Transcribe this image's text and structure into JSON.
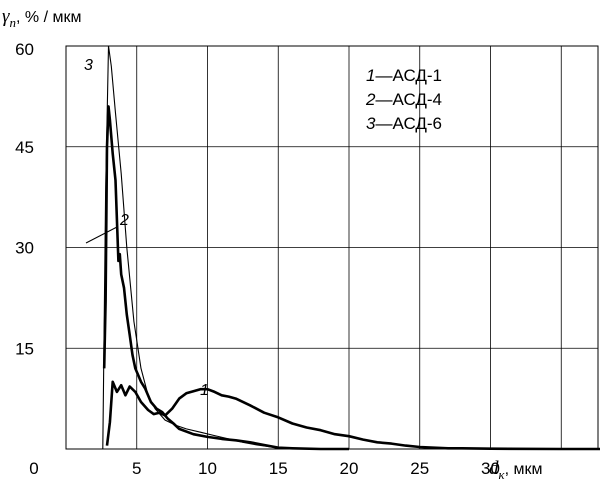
{
  "chart_data": {
    "type": "line",
    "ylabel": {
      "symbol": "γ",
      "subscript": "n",
      "unit": ", % / мкм"
    },
    "xlabel": {
      "symbol": "d",
      "subscript": "к",
      "unit": ", мкм"
    },
    "xlim": [
      0,
      40
    ],
    "ylim": [
      0,
      60
    ],
    "xticks": [
      "0",
      "5",
      "10",
      "15",
      "20",
      "25",
      "30"
    ],
    "yticks": [
      "15",
      "30",
      "45",
      "60"
    ],
    "grid": true,
    "legend": {
      "placement": "top-right",
      "entries": [
        {
          "num": "1",
          "dash": "—",
          "text": "АСД-1"
        },
        {
          "num": "2",
          "dash": "—",
          "text": "АСД-4"
        },
        {
          "num": "3",
          "dash": "—",
          "text": "АСД-6"
        }
      ]
    },
    "series": [
      {
        "name": "АСД-1",
        "label": "1",
        "stroke": "thick",
        "x": [
          2.9,
          3.1,
          3.3,
          3.6,
          3.9,
          4.2,
          4.5,
          4.9,
          5.3,
          5.8,
          6.2,
          6.6,
          7.0,
          7.5,
          8.0,
          8.5,
          9.0,
          9.5,
          10.0,
          10.5,
          11.0,
          11.5,
          12.0,
          13.0,
          14.0,
          15.0,
          16.0,
          17.0,
          18.0,
          19.0,
          20.0,
          21.0,
          22.0,
          23.0,
          24.0,
          25.0,
          26.0,
          27.0,
          28.0,
          30.0,
          35.0,
          40.0
        ],
        "y": [
          0.5,
          4.0,
          10.0,
          8.5,
          9.5,
          8.0,
          9.3,
          8.5,
          7.0,
          5.8,
          5.2,
          5.4,
          5.0,
          6.0,
          7.5,
          8.3,
          8.6,
          8.9,
          8.9,
          8.5,
          8.0,
          7.8,
          7.5,
          6.5,
          5.4,
          4.7,
          3.8,
          3.2,
          2.8,
          2.2,
          1.9,
          1.4,
          1.0,
          0.8,
          0.5,
          0.3,
          0.2,
          0.1,
          0.1,
          0.05,
          0.0,
          0.0
        ]
      },
      {
        "name": "АСД-4",
        "label": "2",
        "stroke": "thick",
        "x": [
          2.7,
          2.8,
          2.9,
          3.0,
          3.1,
          3.3,
          3.5,
          3.7,
          3.8,
          3.9,
          4.1,
          4.3,
          4.5,
          4.7,
          4.9,
          5.1,
          5.3,
          5.6,
          6.0,
          6.4,
          6.8,
          7.2,
          7.6,
          8.0,
          9.0,
          10.0,
          11.0,
          12.0,
          13.0,
          14.0,
          15.0,
          16.0,
          18.0,
          20.0
        ],
        "y": [
          12.0,
          22.0,
          45.0,
          51.0,
          49.0,
          44.0,
          40.0,
          28.0,
          29.0,
          26.0,
          24.0,
          20.0,
          17.0,
          14.0,
          12.0,
          11.0,
          10.0,
          9.0,
          7.0,
          6.0,
          5.5,
          4.5,
          3.8,
          3.0,
          2.2,
          1.8,
          1.5,
          1.3,
          1.0,
          0.6,
          0.2,
          0.1,
          0.0,
          0.0
        ]
      },
      {
        "name": "АСД-6",
        "label": "3",
        "stroke": "thin",
        "x": [
          2.6,
          2.8,
          3.0,
          3.2,
          3.5,
          3.9,
          4.3,
          4.8,
          5.3,
          5.8,
          6.3,
          7.0,
          7.8,
          8.5,
          9.5,
          10.5,
          11.5,
          12.5,
          13.5,
          14.5,
          16.0,
          18.0
        ],
        "y": [
          0.0,
          38.0,
          60.0,
          57.0,
          50.0,
          41.0,
          30.0,
          19.0,
          12.0,
          8.0,
          6.0,
          4.3,
          3.5,
          3.0,
          2.5,
          2.0,
          1.5,
          1.0,
          0.6,
          0.3,
          0.1,
          0.0
        ]
      }
    ]
  }
}
